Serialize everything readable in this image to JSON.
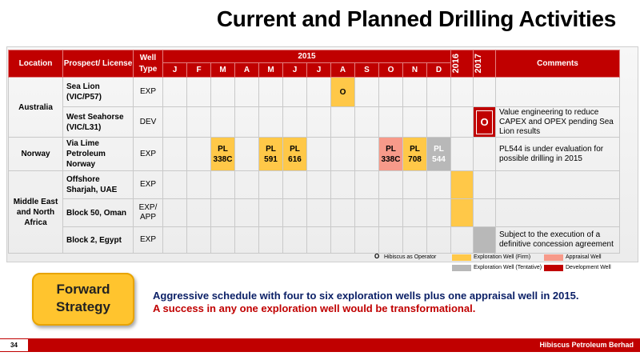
{
  "title": "Current and Planned Drilling Activities",
  "headers": {
    "location": "Location",
    "prospect": "Prospect/ License",
    "well_type": "Well Type",
    "year_2015": "2015",
    "year_2016": "2016",
    "year_2017": "2017",
    "comments": "Comments",
    "months": [
      "J",
      "F",
      "M",
      "A",
      "M",
      "J",
      "J",
      "A",
      "S",
      "O",
      "N",
      "D"
    ]
  },
  "locations": {
    "australia": "Australia",
    "norway": "Norway",
    "mena": "Middle East and North Africa"
  },
  "rows": [
    {
      "prospect": "Sea Lion (VIC/P57)",
      "well_type": "EXP",
      "comment": ""
    },
    {
      "prospect": "West Seahorse (VIC/L31)",
      "well_type": "DEV",
      "comment": "Value engineering to reduce CAPEX and OPEX pending Sea Lion results"
    },
    {
      "prospect": "Via Lime Petroleum Norway",
      "well_type": "EXP",
      "comment": "PL544 is under evaluation for possible drilling in 2015"
    },
    {
      "prospect": "Offshore Sharjah, UAE",
      "well_type": "EXP",
      "comment": ""
    },
    {
      "prospect": "Block 50, Oman",
      "well_type": "EXP/ APP",
      "comment": ""
    },
    {
      "prospect": "Block 2, Egypt",
      "well_type": "EXP",
      "comment": "Subject to the execution of a definitive concession agreement"
    }
  ],
  "cells": {
    "sea_lion_aug": "O",
    "west_seahorse_2017": "O",
    "pl338c_mar": "PL 338C",
    "pl591_may": "PL 591",
    "pl616_jun": "PL 616",
    "pl338c_oct": "PL 338C",
    "pl708_nov": "PL 708",
    "pl544_dec": "PL 544"
  },
  "legend": {
    "operator_mark": "O",
    "operator": "Hibiscus as Operator",
    "firm": "Exploration Well (Firm)",
    "tentative": "Exploration Well (Tentative)",
    "appraisal": "Appraisal Well",
    "development": "Development Well"
  },
  "colors": {
    "firm": "#ffc848",
    "tentative": "#b8b8b8",
    "appraisal": "#f79a8a",
    "development": "#c00000"
  },
  "forward_strategy": {
    "line1": "Forward",
    "line2": "Strategy",
    "statement1": "Aggressive schedule with four to six exploration wells plus one appraisal well in 2015.",
    "statement2": "A success in any one exploration well would be transformational."
  },
  "footer": {
    "page": "34",
    "company": "Hibiscus Petroleum Berhad"
  }
}
